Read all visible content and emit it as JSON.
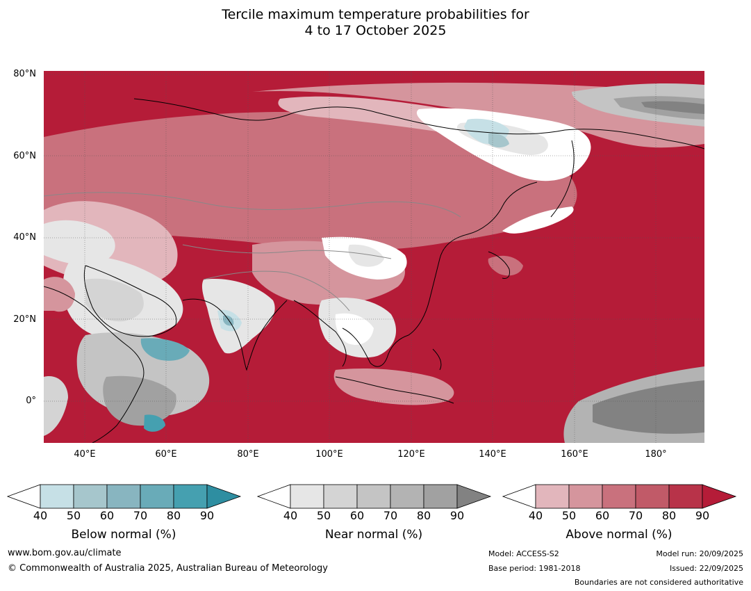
{
  "title_line1": "Tercile maximum temperature probabilities for",
  "title_line2": "4 to 17 October 2025",
  "map": {
    "lat_labels": [
      "80°N",
      "60°N",
      "40°N",
      "20°N",
      "0°"
    ],
    "lon_labels": [
      "40°E",
      "60°E",
      "80°E",
      "100°E",
      "120°E",
      "140°E",
      "160°E",
      "180°"
    ],
    "extent": {
      "lon_min": 30,
      "lon_max": 192,
      "lat_min": -10,
      "lat_max": 81
    }
  },
  "legends": [
    {
      "title": "Below normal (%)",
      "ticks": [
        "40",
        "50",
        "60",
        "70",
        "80",
        "90"
      ],
      "colors": [
        "#ffffff",
        "#c6e0e6",
        "#a6c6cc",
        "#88b5c0",
        "#69abb8",
        "#45a0b0",
        "#2e8ea1"
      ]
    },
    {
      "title": "Near normal (%)",
      "ticks": [
        "40",
        "50",
        "60",
        "70",
        "80",
        "90"
      ],
      "colors": [
        "#ffffff",
        "#e6e6e6",
        "#d4d4d4",
        "#c4c4c4",
        "#b3b3b3",
        "#a1a1a1",
        "#828282"
      ]
    },
    {
      "title": "Above normal (%)",
      "ticks": [
        "40",
        "50",
        "60",
        "70",
        "80",
        "90"
      ],
      "colors": [
        "#ffffff",
        "#e2b6bc",
        "#d5959d",
        "#c9717d",
        "#c15a68",
        "#b83349",
        "#b51c38"
      ]
    }
  ],
  "footer": {
    "website": "www.bom.gov.au/climate",
    "copyright": "© Commonwealth of Australia 2025, Australian Bureau of Meteorology",
    "model": "Model: ACCESS-S2",
    "base_period": "Base period: 1981-2018",
    "model_run": "Model run: 20/09/2025",
    "issued": "Issued: 22/09/2025",
    "disclaimer": "Boundaries are not considered authoritative"
  }
}
